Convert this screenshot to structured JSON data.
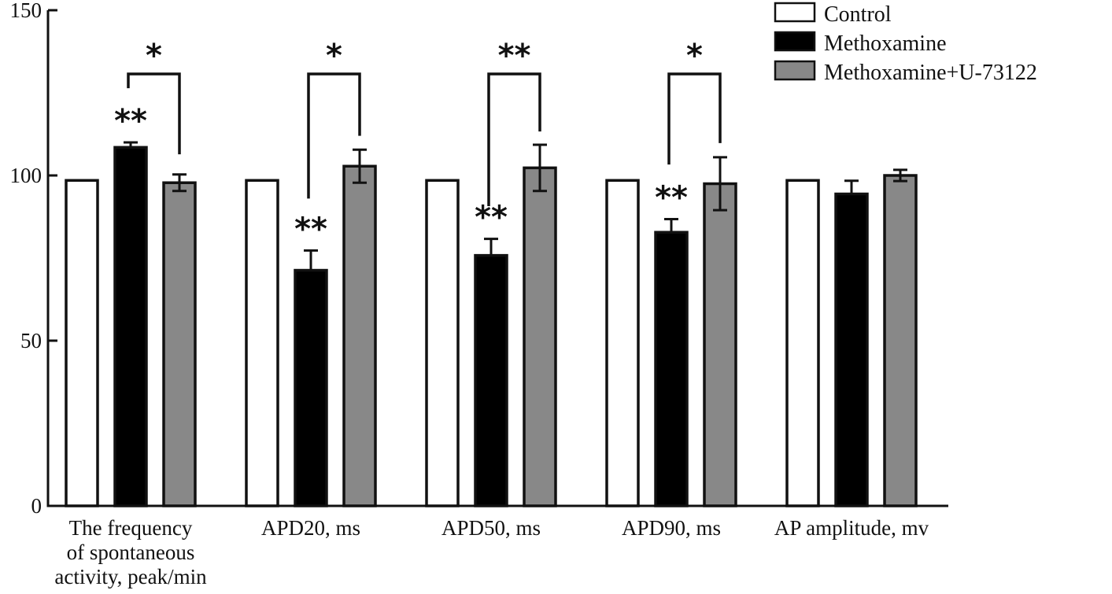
{
  "chart_data": {
    "type": "bar",
    "title": "",
    "xlabel": "",
    "ylabel": "",
    "ylim": [
      0,
      150
    ],
    "yticks": [
      0,
      50,
      100,
      150
    ],
    "grid": false,
    "legend_position": "top-right",
    "categories": [
      [
        "The frequency",
        "of spontaneous",
        "activity, peak/min"
      ],
      [
        "APD20, ms"
      ],
      [
        "APD50, ms"
      ],
      [
        "APD90, ms"
      ],
      [
        "AP amplitude, mv"
      ]
    ],
    "series": [
      {
        "name": "Control",
        "color": "#ffffff",
        "values": [
          98.5,
          98.5,
          98.5,
          98.5,
          98.5
        ],
        "errors": [
          0,
          0,
          0,
          0,
          0
        ]
      },
      {
        "name": "Methoxamine",
        "color": "#000000",
        "values": [
          108.5,
          71.3,
          75.8,
          82.8,
          94.4
        ],
        "errors": [
          1.5,
          6.0,
          5.0,
          4.0,
          4.0
        ]
      },
      {
        "name": "Methoxamine+U-73122",
        "color": "#888888",
        "values": [
          97.8,
          102.8,
          102.3,
          97.5,
          100.0
        ],
        "errors": [
          2.5,
          5.0,
          7.0,
          8.0,
          1.7
        ]
      }
    ],
    "significance_over_bars": [
      {
        "category": 0,
        "series": 1,
        "label": "**"
      },
      {
        "category": 1,
        "series": 1,
        "label": "**"
      },
      {
        "category": 2,
        "series": 1,
        "label": "**"
      },
      {
        "category": 3,
        "series": 1,
        "label": "**"
      }
    ],
    "brackets": [
      {
        "category": 0,
        "from_series": 1,
        "to_series": 2,
        "level": 130.7,
        "left_end": 126.4,
        "right_end": 106.4,
        "label": "*"
      },
      {
        "category": 1,
        "from_series": 1,
        "to_series": 2,
        "level": 130.7,
        "left_end": 93.0,
        "right_end": 112.0,
        "label": "*"
      },
      {
        "category": 2,
        "from_series": 1,
        "to_series": 2,
        "level": 130.7,
        "left_end": 90.7,
        "right_end": 113.3,
        "label": "**"
      },
      {
        "category": 3,
        "from_series": 1,
        "to_series": 2,
        "level": 130.7,
        "left_end": 103.3,
        "right_end": 109.8,
        "label": "*"
      }
    ]
  }
}
